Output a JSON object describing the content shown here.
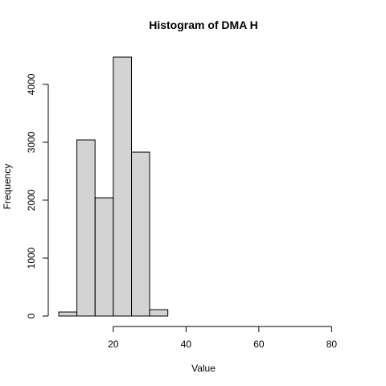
{
  "chart_data": {
    "type": "bar",
    "title": "Histogram of DMA H",
    "xlabel": "Value",
    "ylabel": "Frequency",
    "bins": [
      {
        "start": 5,
        "end": 10,
        "count": 70
      },
      {
        "start": 10,
        "end": 15,
        "count": 3040
      },
      {
        "start": 15,
        "end": 20,
        "count": 2040
      },
      {
        "start": 20,
        "end": 25,
        "count": 4470
      },
      {
        "start": 25,
        "end": 30,
        "count": 2830
      },
      {
        "start": 30,
        "end": 35,
        "count": 110
      },
      {
        "start": 35,
        "end": 40,
        "count": 0
      },
      {
        "start": 40,
        "end": 45,
        "count": 0
      },
      {
        "start": 45,
        "end": 50,
        "count": 0
      },
      {
        "start": 50,
        "end": 55,
        "count": 0
      },
      {
        "start": 55,
        "end": 60,
        "count": 0
      },
      {
        "start": 60,
        "end": 65,
        "count": 0
      },
      {
        "start": 65,
        "end": 70,
        "count": 0
      },
      {
        "start": 70,
        "end": 75,
        "count": 0
      },
      {
        "start": 75,
        "end": 80,
        "count": 0
      },
      {
        "start": 80,
        "end": 85,
        "count": 0
      }
    ],
    "xlim": [
      5,
      85
    ],
    "ylim": [
      0,
      4470
    ],
    "x_ticks": [
      20,
      40,
      60,
      80
    ],
    "y_ticks": [
      0,
      1000,
      2000,
      3000,
      4000
    ],
    "bar_color": "#d3d3d3",
    "border_color": "#000000",
    "grid": false,
    "legend": "none"
  }
}
